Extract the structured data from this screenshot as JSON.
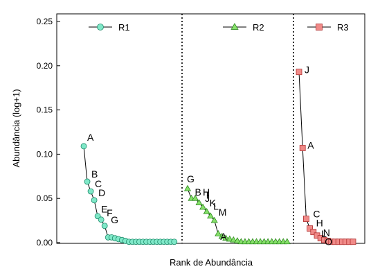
{
  "chart_data": {
    "type": "scatter",
    "title": "",
    "xlabel": "Rank de Abundância",
    "ylabel": "Abundância (log+1)",
    "ylim": [
      0,
      0.25
    ],
    "yticks": [
      "0.00",
      "0.05",
      "0.10",
      "0.15",
      "0.20",
      "0.25"
    ],
    "grid": false,
    "legend_position": "top",
    "dividers": "dotted vertical lines between series",
    "series": [
      {
        "name": "R1",
        "marker": "circle",
        "color": "#7fe8c8",
        "stroke": "#1f8a6a",
        "values": [
          0.109,
          0.069,
          0.058,
          0.048,
          0.03,
          0.026,
          0.019,
          0.006,
          0.006,
          0.005,
          0.004,
          0.003,
          0.002,
          0.001,
          0.001,
          0.001,
          0.001,
          0.001,
          0.001,
          0.001,
          0.001,
          0.001,
          0.001,
          0.001,
          0.001,
          0.001,
          0.001
        ],
        "labels": [
          {
            "index": 0,
            "text": "A"
          },
          {
            "index": 1,
            "text": "B"
          },
          {
            "index": 2,
            "text": "C"
          },
          {
            "index": 3,
            "text": "D"
          },
          {
            "index": 4,
            "text": "E"
          },
          {
            "index": 5,
            "text": "F"
          },
          {
            "index": 6,
            "text": "G"
          }
        ]
      },
      {
        "name": "R2",
        "marker": "triangle",
        "color": "#86e06a",
        "stroke": "#2f8a20",
        "values": [
          0.061,
          0.05,
          0.05,
          0.045,
          0.04,
          0.035,
          0.03,
          0.025,
          0.01,
          0.007,
          0.005,
          0.004,
          0.003,
          0.002,
          0.001,
          0.001,
          0.001,
          0.001,
          0.001,
          0.001,
          0.001,
          0.001,
          0.001,
          0.001,
          0.001,
          0.001,
          0.001
        ],
        "labels": [
          {
            "index": 0,
            "text": "G"
          },
          {
            "index": 1,
            "text": "B"
          },
          {
            "index": 2,
            "text": "H"
          },
          {
            "index": 3,
            "text": "I"
          },
          {
            "index": 4,
            "text": "J"
          },
          {
            "index": 5,
            "text": "K"
          },
          {
            "index": 6,
            "text": "L"
          },
          {
            "index": 7,
            "text": "M"
          },
          {
            "index": 8,
            "text": "A"
          }
        ]
      },
      {
        "name": "R3",
        "marker": "square",
        "color": "#f08a88",
        "stroke": "#b03030",
        "values": [
          0.193,
          0.107,
          0.027,
          0.016,
          0.012,
          0.008,
          0.005,
          0.003,
          0.002,
          0.001,
          0.001,
          0.001,
          0.001,
          0.001,
          0.001,
          0.001
        ],
        "labels": [
          {
            "index": 0,
            "text": "J"
          },
          {
            "index": 1,
            "text": "A"
          },
          {
            "index": 2,
            "text": "C"
          },
          {
            "index": 3,
            "text": "H"
          },
          {
            "index": 4,
            "text": "N"
          },
          {
            "index": 5,
            "text": "L"
          },
          {
            "index": 6,
            "text": "O"
          }
        ]
      }
    ]
  }
}
